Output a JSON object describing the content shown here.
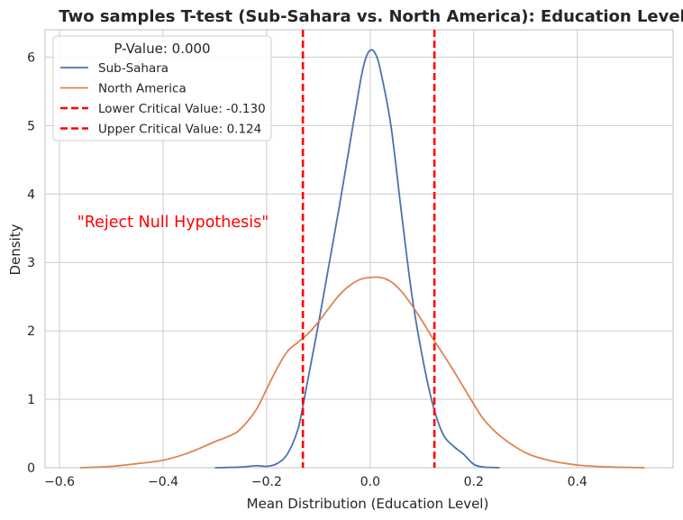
{
  "chart_data": {
    "type": "line",
    "title": "Two samples T-test (Sub-Sahara vs. North America): Education Level",
    "xlabel": "Mean Distribution (Education Level)",
    "ylabel": "Density",
    "xlim": [
      -0.628,
      0.585
    ],
    "ylim": [
      0,
      6.4
    ],
    "xticks": [
      -0.6,
      -0.4,
      -0.2,
      0.0,
      0.2,
      0.4
    ],
    "xtick_labels": [
      "−0.6",
      "−0.4",
      "−0.2",
      "0.0",
      "0.2",
      "0.4"
    ],
    "yticks": [
      0,
      1,
      2,
      3,
      4,
      5,
      6
    ],
    "ytick_labels": [
      "0",
      "1",
      "2",
      "3",
      "4",
      "5",
      "6"
    ],
    "grid": true,
    "legend": {
      "title": "P-Value: 0.000",
      "placement": "top-left",
      "entries": [
        {
          "label": "Sub-Sahara",
          "color": "#4c72b0",
          "style": "solid"
        },
        {
          "label": "North America",
          "color": "#dd8452",
          "style": "solid"
        },
        {
          "label": "Lower Critical Value: -0.130",
          "color": "#ff0000",
          "style": "dashed"
        },
        {
          "label": "Upper Critical Value: 0.124",
          "color": "#ff0000",
          "style": "dashed"
        }
      ]
    },
    "annotation": {
      "text": "\"Reject Null Hypothesis\"",
      "color": "#ff0000"
    },
    "critical_values": {
      "lower": -0.13,
      "upper": 0.124,
      "color": "#ff0000"
    },
    "series": [
      {
        "name": "Sub-Sahara",
        "color": "#4c72b0",
        "points": [
          [
            -0.3,
            0
          ],
          [
            -0.25,
            0.01
          ],
          [
            -0.22,
            0.03
          ],
          [
            -0.2,
            0.02
          ],
          [
            -0.18,
            0.06
          ],
          [
            -0.16,
            0.2
          ],
          [
            -0.14,
            0.55
          ],
          [
            -0.13,
            0.9
          ],
          [
            -0.12,
            1.3
          ],
          [
            -0.1,
            2.1
          ],
          [
            -0.08,
            2.95
          ],
          [
            -0.06,
            3.8
          ],
          [
            -0.04,
            4.7
          ],
          [
            -0.02,
            5.6
          ],
          [
            -0.01,
            5.95
          ],
          [
            0.0,
            6.1
          ],
          [
            0.01,
            6.05
          ],
          [
            0.02,
            5.8
          ],
          [
            0.04,
            5.0
          ],
          [
            0.06,
            3.75
          ],
          [
            0.08,
            2.55
          ],
          [
            0.1,
            1.65
          ],
          [
            0.12,
            0.95
          ],
          [
            0.14,
            0.5
          ],
          [
            0.16,
            0.32
          ],
          [
            0.18,
            0.2
          ],
          [
            0.2,
            0.05
          ],
          [
            0.22,
            0.01
          ],
          [
            0.25,
            0
          ]
        ]
      },
      {
        "name": "North America",
        "color": "#dd8452",
        "points": [
          [
            -0.56,
            0
          ],
          [
            -0.5,
            0.02
          ],
          [
            -0.45,
            0.06
          ],
          [
            -0.4,
            0.11
          ],
          [
            -0.35,
            0.22
          ],
          [
            -0.3,
            0.38
          ],
          [
            -0.27,
            0.47
          ],
          [
            -0.25,
            0.57
          ],
          [
            -0.22,
            0.85
          ],
          [
            -0.2,
            1.15
          ],
          [
            -0.18,
            1.45
          ],
          [
            -0.16,
            1.7
          ],
          [
            -0.14,
            1.83
          ],
          [
            -0.12,
            1.96
          ],
          [
            -0.1,
            2.13
          ],
          [
            -0.08,
            2.33
          ],
          [
            -0.06,
            2.52
          ],
          [
            -0.04,
            2.66
          ],
          [
            -0.02,
            2.75
          ],
          [
            0.0,
            2.78
          ],
          [
            0.02,
            2.78
          ],
          [
            0.04,
            2.72
          ],
          [
            0.06,
            2.58
          ],
          [
            0.08,
            2.38
          ],
          [
            0.1,
            2.15
          ],
          [
            0.12,
            1.9
          ],
          [
            0.14,
            1.67
          ],
          [
            0.16,
            1.43
          ],
          [
            0.18,
            1.18
          ],
          [
            0.2,
            0.93
          ],
          [
            0.22,
            0.7
          ],
          [
            0.25,
            0.47
          ],
          [
            0.3,
            0.22
          ],
          [
            0.35,
            0.1
          ],
          [
            0.4,
            0.04
          ],
          [
            0.45,
            0.015
          ],
          [
            0.5,
            0.005
          ],
          [
            0.53,
            0
          ]
        ]
      }
    ]
  }
}
